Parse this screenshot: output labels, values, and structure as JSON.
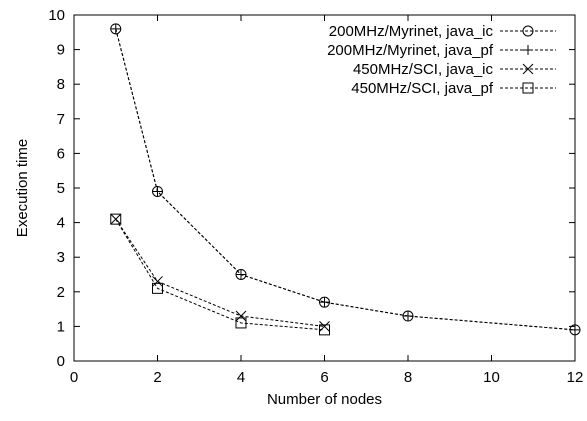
{
  "chart_data": {
    "type": "line",
    "xlabel": "Number of nodes",
    "ylabel": "Execution time",
    "xlim": [
      0,
      12
    ],
    "ylim": [
      0,
      10
    ],
    "xticks": [
      "0",
      "2",
      "4",
      "6",
      "8",
      "10",
      "12"
    ],
    "yticks": [
      "0",
      "1",
      "2",
      "3",
      "4",
      "5",
      "6",
      "7",
      "8",
      "9",
      "10"
    ],
    "grid": false,
    "legend_position": "top-right",
    "series": [
      {
        "name": "200MHz/Myrinet, java_ic",
        "marker": "circle",
        "x": [
          1,
          2,
          4,
          6,
          8,
          12
        ],
        "values": [
          9.6,
          4.9,
          2.5,
          1.7,
          1.3,
          0.9
        ]
      },
      {
        "name": "200MHz/Myrinet, java_pf",
        "marker": "plus",
        "x": [
          1,
          2,
          4,
          6,
          8,
          12
        ],
        "values": [
          9.6,
          4.9,
          2.5,
          1.7,
          1.3,
          0.9
        ]
      },
      {
        "name": "450MHz/SCI, java_ic",
        "marker": "cross",
        "x": [
          1,
          2,
          4,
          6
        ],
        "values": [
          4.1,
          2.3,
          1.3,
          1.0
        ]
      },
      {
        "name": "450MHz/SCI, java_pf",
        "marker": "square",
        "x": [
          1,
          2,
          4,
          6
        ],
        "values": [
          4.1,
          2.1,
          1.1,
          0.9
        ]
      }
    ]
  }
}
